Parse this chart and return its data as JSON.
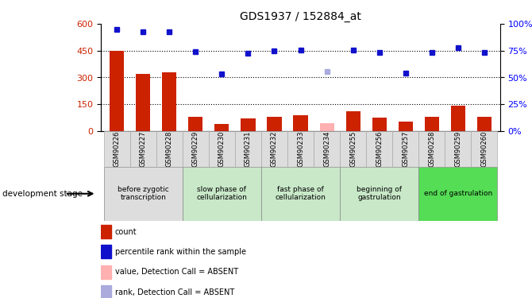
{
  "title": "GDS1937 / 152884_at",
  "samples": [
    "GSM90226",
    "GSM90227",
    "GSM90228",
    "GSM90229",
    "GSM90230",
    "GSM90231",
    "GSM90232",
    "GSM90233",
    "GSM90234",
    "GSM90255",
    "GSM90256",
    "GSM90257",
    "GSM90258",
    "GSM90259",
    "GSM90260"
  ],
  "bar_values": [
    450,
    320,
    330,
    80,
    40,
    70,
    80,
    90,
    null,
    110,
    75,
    55,
    80,
    140,
    80
  ],
  "bar_absent": [
    null,
    null,
    null,
    null,
    null,
    null,
    null,
    null,
    45,
    null,
    null,
    null,
    null,
    null,
    null
  ],
  "percentile_values": [
    570,
    555,
    555,
    445,
    320,
    435,
    448,
    452,
    null,
    455,
    440,
    325,
    440,
    465,
    440
  ],
  "percentile_absent": [
    null,
    null,
    null,
    null,
    null,
    null,
    null,
    null,
    335,
    null,
    null,
    null,
    null,
    null,
    null
  ],
  "left_ylim": [
    0,
    600
  ],
  "left_yticks": [
    0,
    150,
    300,
    450,
    600
  ],
  "right_ylim": [
    0,
    100
  ],
  "right_yticks": [
    0,
    25,
    50,
    75,
    100
  ],
  "bar_color": "#cc2200",
  "bar_absent_color": "#ffb0b0",
  "dot_color": "#1111cc",
  "dot_absent_color": "#aaaadd",
  "stage_groups": [
    {
      "label": "before zygotic\ntranscription",
      "samples": [
        "GSM90226",
        "GSM90227",
        "GSM90228"
      ],
      "color": "#dddddd"
    },
    {
      "label": "slow phase of\ncellularization",
      "samples": [
        "GSM90229",
        "GSM90230",
        "GSM90231"
      ],
      "color": "#c8e8c8"
    },
    {
      "label": "fast phase of\ncellularization",
      "samples": [
        "GSM90232",
        "GSM90233",
        "GSM90234"
      ],
      "color": "#c8e8c8"
    },
    {
      "label": "beginning of\ngastrulation",
      "samples": [
        "GSM90255",
        "GSM90256",
        "GSM90257"
      ],
      "color": "#c8e8c8"
    },
    {
      "label": "end of gastrulation",
      "samples": [
        "GSM90258",
        "GSM90259",
        "GSM90260"
      ],
      "color": "#55dd55"
    }
  ],
  "dev_stage_label": "development stage",
  "grid_dotted_values": [
    150,
    300,
    450
  ],
  "legend_items": [
    {
      "label": "count",
      "color": "#cc2200"
    },
    {
      "label": "percentile rank within the sample",
      "color": "#1111cc"
    },
    {
      "label": "value, Detection Call = ABSENT",
      "color": "#ffb0b0"
    },
    {
      "label": "rank, Detection Call = ABSENT",
      "color": "#aaaadd"
    }
  ]
}
